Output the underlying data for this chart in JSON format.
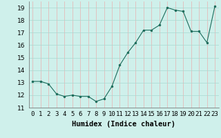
{
  "xlabel": "Humidex (Indice chaleur)",
  "x": [
    0,
    1,
    2,
    3,
    4,
    5,
    6,
    7,
    8,
    9,
    10,
    11,
    12,
    13,
    14,
    15,
    16,
    17,
    18,
    19,
    20,
    21,
    22,
    23
  ],
  "y": [
    13.1,
    13.1,
    12.9,
    12.1,
    11.9,
    12.0,
    11.9,
    11.9,
    11.5,
    11.7,
    12.7,
    14.4,
    15.4,
    16.2,
    17.2,
    17.2,
    17.6,
    19.0,
    18.8,
    18.7,
    17.1,
    17.1,
    16.2,
    19.1
  ],
  "ylim": [
    11,
    19.5
  ],
  "yticks": [
    11,
    12,
    13,
    14,
    15,
    16,
    17,
    18,
    19
  ],
  "bg_color": "#cff0eb",
  "grid_color_v": "#e8b0b0",
  "grid_color_h": "#a8d8d0",
  "line_color": "#1a6b5a",
  "marker_color": "#1a6b5a",
  "tick_label_fontsize": 6.5,
  "xlabel_fontsize": 7.5
}
